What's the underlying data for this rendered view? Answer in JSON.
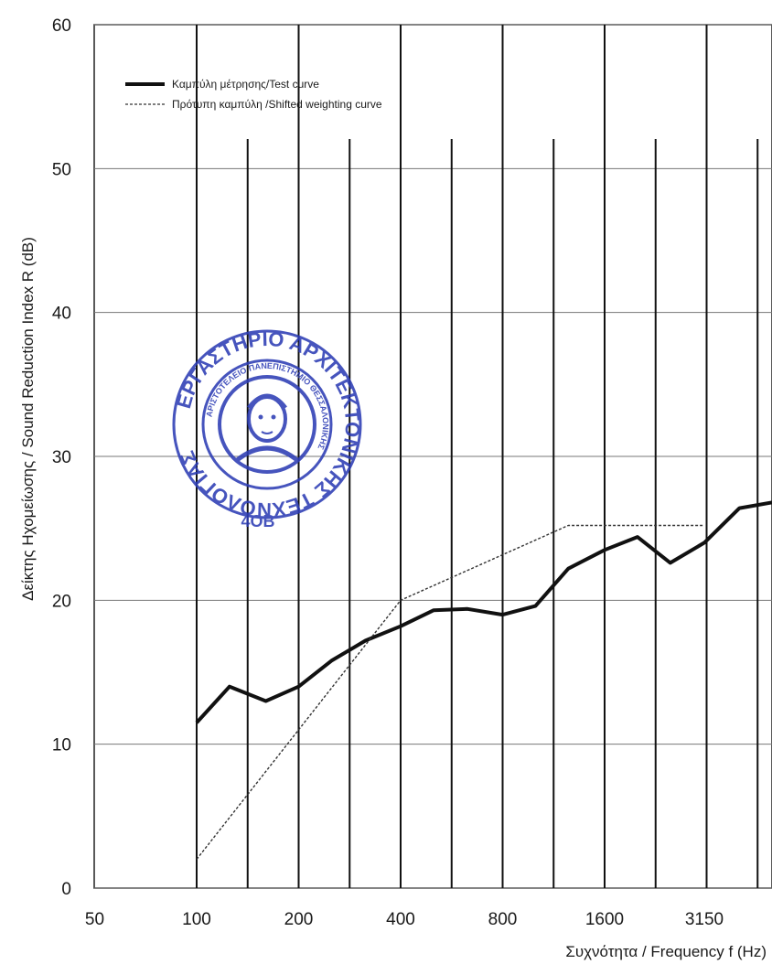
{
  "chart_data": {
    "type": "line",
    "ylabel": "Δείκτης Ηχομείωσης / Sound Reduction  Index R (dB)",
    "xlabel": "Συχνότητα / Frequency f (Hz)",
    "ylim": [
      0,
      60
    ],
    "yticks": [
      0,
      10,
      20,
      30,
      40,
      50,
      60
    ],
    "xticks": [
      "50",
      "100",
      "200",
      "400",
      "800",
      "1600",
      "3150"
    ],
    "x_scale": "log (third-octave bands)",
    "grid": true,
    "legend_position": "top-left",
    "series": [
      {
        "name": "Καμπύλη μέτρησης/Test curve",
        "style": "solid",
        "color": "#111111",
        "x": [
          100,
          125,
          160,
          200,
          250,
          315,
          400,
          500,
          630,
          800,
          1000,
          1250,
          1600,
          2000,
          2500,
          3150,
          4000,
          5000
        ],
        "y": [
          11.5,
          14.0,
          13.0,
          14.0,
          15.8,
          17.2,
          18.2,
          19.3,
          19.4,
          19.0,
          19.6,
          22.2,
          23.5,
          24.4,
          22.6,
          24.0,
          26.4,
          26.8
        ]
      },
      {
        "name": "Πρότυπη καμπύλη /Shifted weighting curve",
        "style": "dashed",
        "color": "#333333",
        "x": [
          100,
          400,
          1250,
          3150
        ],
        "y": [
          2.0,
          20.0,
          25.2,
          25.2
        ]
      }
    ]
  },
  "stamp": {
    "lettering": "ΕΡΓΑΣΤΗΡΙΟ ΑΡΧΙΤΕΚΤΟΝΙΚΗΣ ΤΕΧΝΟΛΟΓΙΑΣ",
    "inner_lettering": "ΑΡΙΣΤΟΤΕΛΕΙΟ ΠΑΝΕΠΙΣΤΗΜΙΟ ΘΕΣΣΑΛΟΝΙΚΗΣ",
    "number": "4ΟΒ",
    "color": "#2d3db5"
  }
}
